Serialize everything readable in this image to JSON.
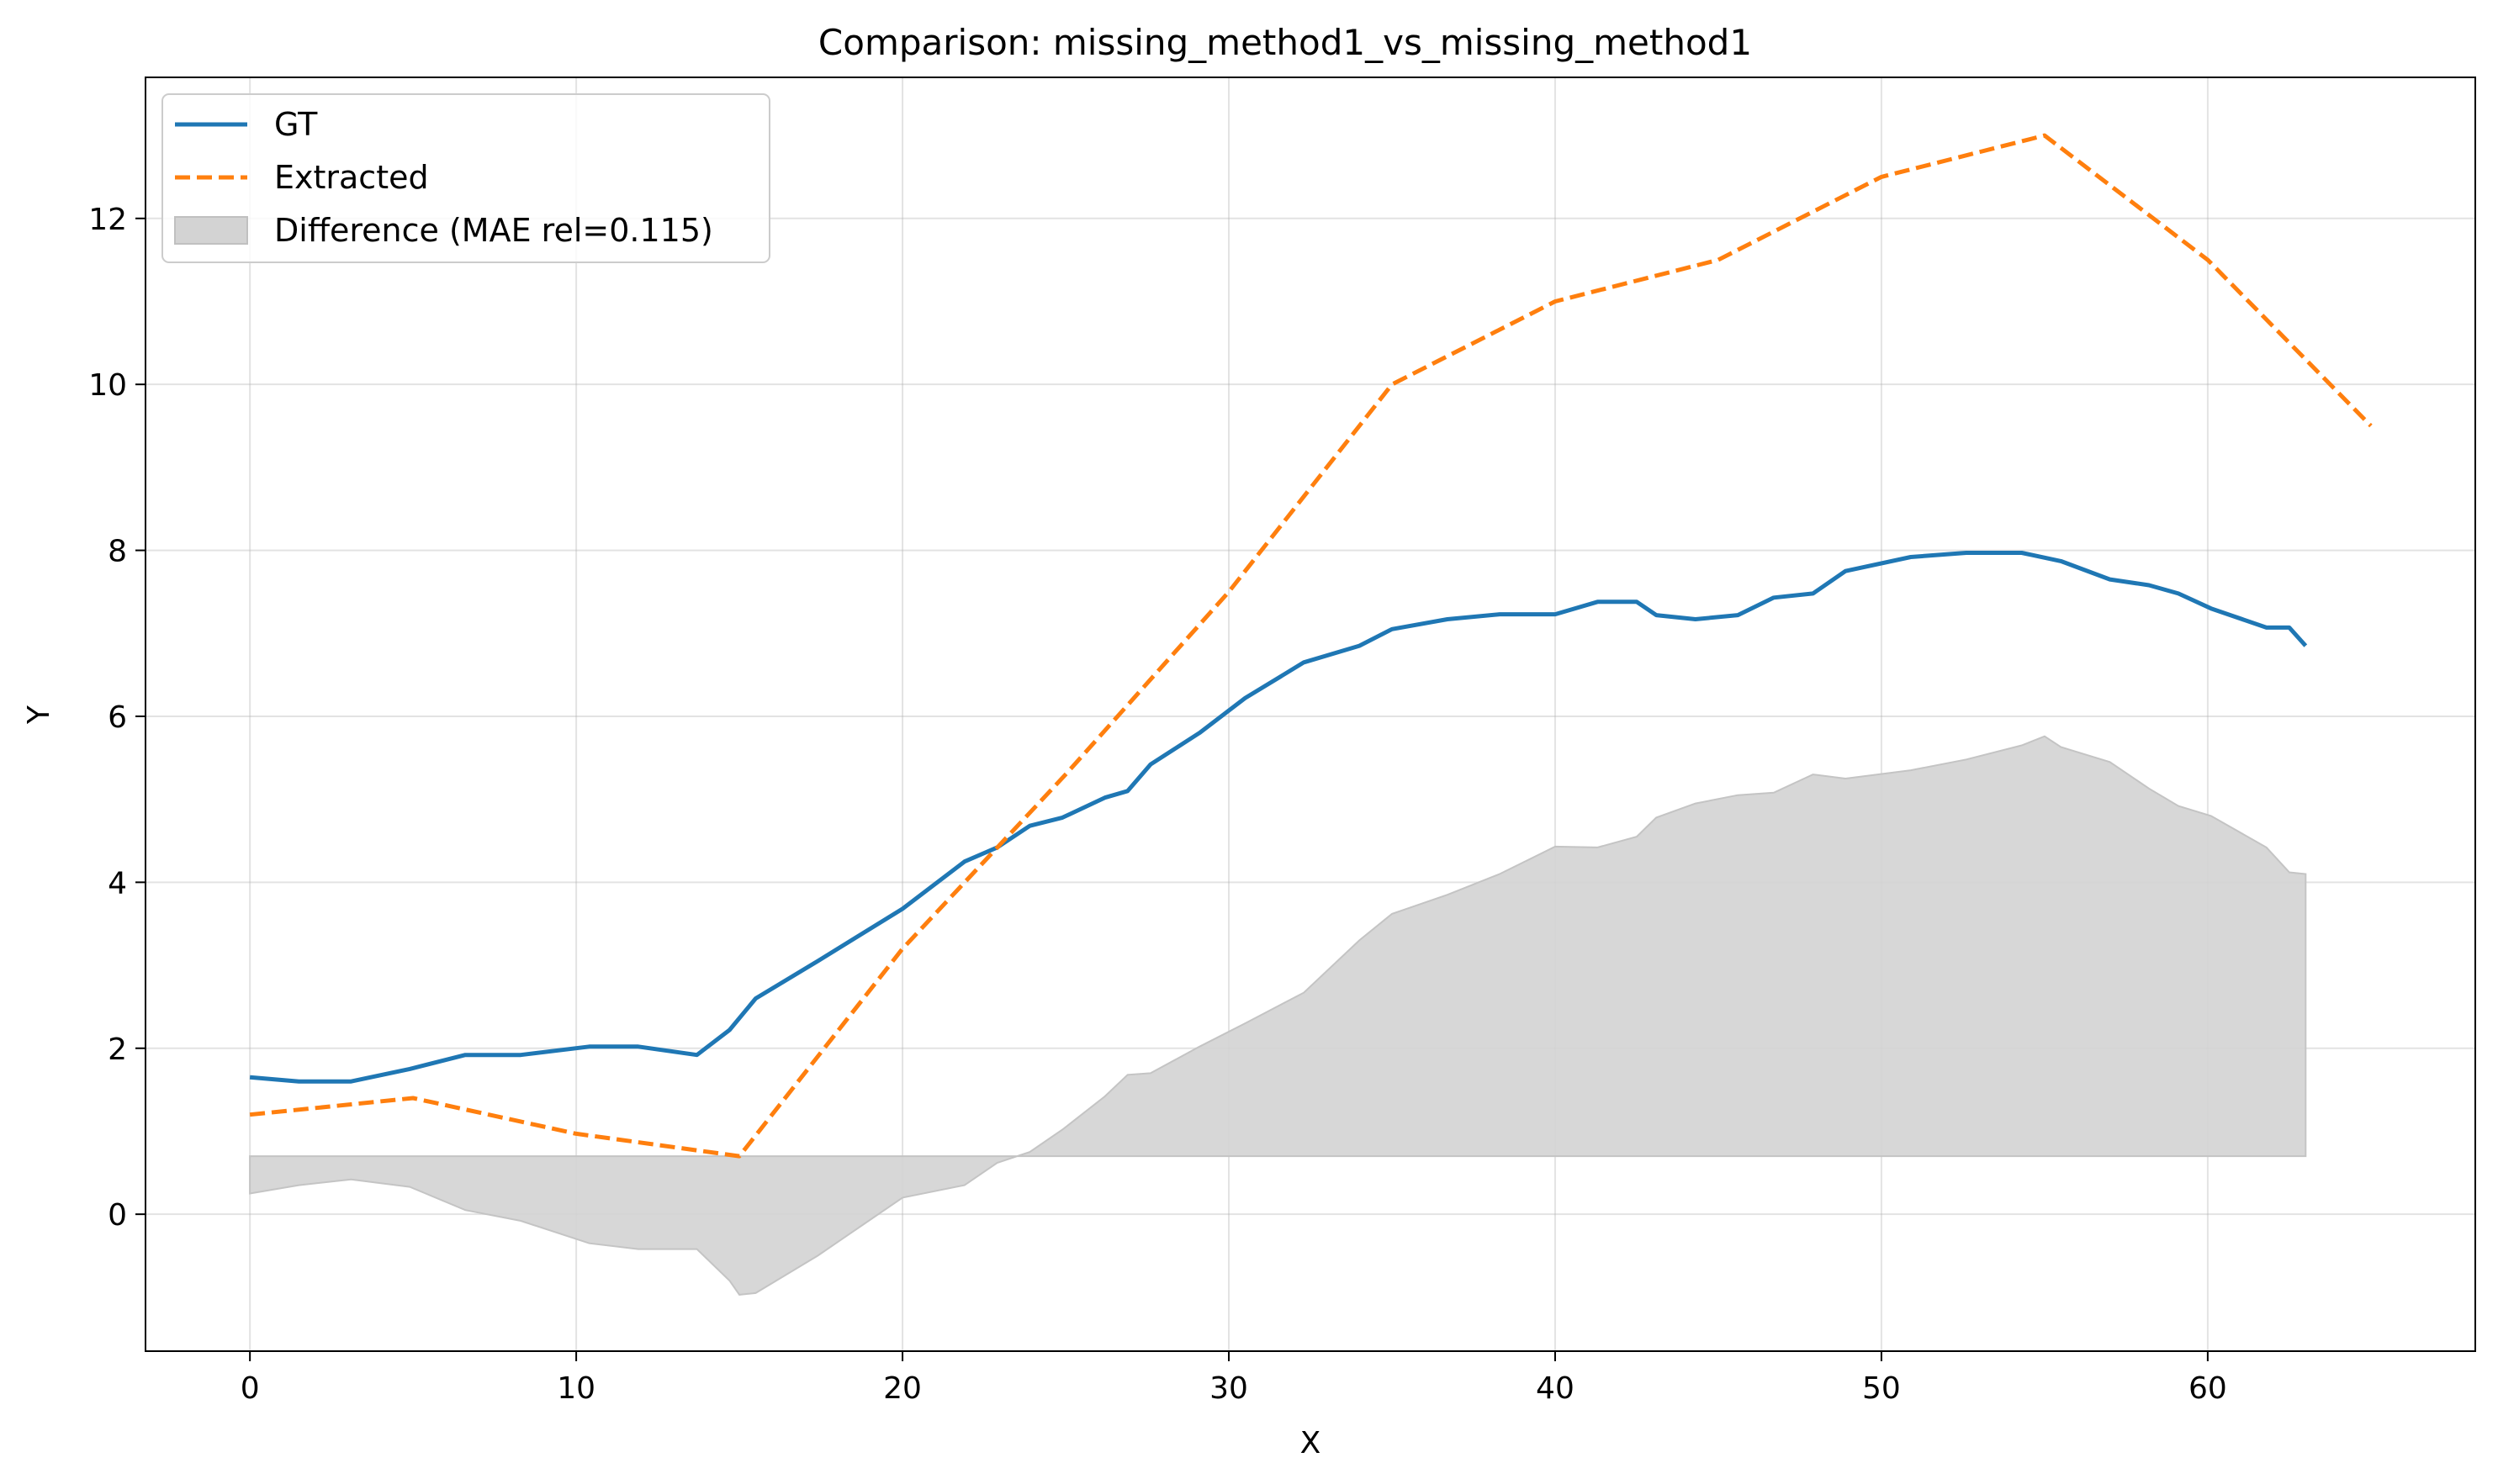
{
  "chart_data": {
    "type": "line",
    "title": "Comparison: missing_method1_vs_missing_method1",
    "xlabel": "X",
    "ylabel": "Y",
    "xlim": [
      -3.2,
      68.2
    ],
    "ylim": [
      -1.65,
      13.7
    ],
    "xticks": [
      0,
      10,
      20,
      30,
      40,
      50,
      60
    ],
    "yticks": [
      0,
      2,
      4,
      6,
      8,
      10,
      12
    ],
    "grid": true,
    "legend_position": "top-left",
    "colors": {
      "gt": "#1f77b4",
      "extracted": "#ff7f0e",
      "difference": "#d3d3d3"
    },
    "series": [
      {
        "name": "GT",
        "style": "solid",
        "points": [
          [
            0,
            1.65
          ],
          [
            1.5,
            1.6
          ],
          [
            3.1,
            1.6
          ],
          [
            4.9,
            1.75
          ],
          [
            6.6,
            1.92
          ],
          [
            8.3,
            1.92
          ],
          [
            10.4,
            2.02
          ],
          [
            11.9,
            2.02
          ],
          [
            13.7,
            1.92
          ],
          [
            14.7,
            2.22
          ],
          [
            15.5,
            2.6
          ],
          [
            17.4,
            3.05
          ],
          [
            20.0,
            3.68
          ],
          [
            21.9,
            4.25
          ],
          [
            22.9,
            4.42
          ],
          [
            23.9,
            4.68
          ],
          [
            24.9,
            4.78
          ],
          [
            26.2,
            5.02
          ],
          [
            26.9,
            5.1
          ],
          [
            27.6,
            5.42
          ],
          [
            29.1,
            5.8
          ],
          [
            30.5,
            6.22
          ],
          [
            32.3,
            6.65
          ],
          [
            34.0,
            6.85
          ],
          [
            35.0,
            7.05
          ],
          [
            36.7,
            7.17
          ],
          [
            38.3,
            7.23
          ],
          [
            40.0,
            7.23
          ],
          [
            41.3,
            7.38
          ],
          [
            42.5,
            7.38
          ],
          [
            43.1,
            7.22
          ],
          [
            44.3,
            7.17
          ],
          [
            45.6,
            7.22
          ],
          [
            46.7,
            7.43
          ],
          [
            47.9,
            7.48
          ],
          [
            48.9,
            7.75
          ],
          [
            50.9,
            7.92
          ],
          [
            52.6,
            7.97
          ],
          [
            54.3,
            7.97
          ],
          [
            55.5,
            7.87
          ],
          [
            57.0,
            7.65
          ],
          [
            58.2,
            7.58
          ],
          [
            59.1,
            7.48
          ],
          [
            60.1,
            7.3
          ],
          [
            61.8,
            7.07
          ],
          [
            62.5,
            7.07
          ],
          [
            63.0,
            6.85
          ]
        ]
      },
      {
        "name": "Extracted",
        "style": "dashed",
        "points": [
          [
            0,
            1.2
          ],
          [
            5,
            1.4
          ],
          [
            10,
            0.97
          ],
          [
            15,
            0.7
          ],
          [
            20,
            3.2
          ],
          [
            25,
            5.3
          ],
          [
            30,
            7.5
          ],
          [
            35,
            10.0
          ],
          [
            40,
            11.0
          ],
          [
            45,
            11.5
          ],
          [
            50,
            12.5
          ],
          [
            55,
            13.0
          ],
          [
            60,
            11.5
          ],
          [
            65,
            9.5
          ]
        ]
      }
    ],
    "difference": {
      "name": "Difference (MAE rel=0.115)",
      "baseline": 0.7,
      "points": [
        [
          0,
          0.25
        ],
        [
          1.5,
          0.35
        ],
        [
          3.1,
          0.42
        ],
        [
          4.9,
          0.33
        ],
        [
          6.6,
          0.05
        ],
        [
          8.3,
          -0.08
        ],
        [
          10.4,
          -0.35
        ],
        [
          11.9,
          -0.42
        ],
        [
          13.7,
          -0.42
        ],
        [
          14.7,
          -0.8
        ],
        [
          15.0,
          -0.97
        ],
        [
          15.5,
          -0.95
        ],
        [
          17.4,
          -0.5
        ],
        [
          20.0,
          0.2
        ],
        [
          21.9,
          0.35
        ],
        [
          22.9,
          0.62
        ],
        [
          23.9,
          0.75
        ],
        [
          24.9,
          1.02
        ],
        [
          26.2,
          1.42
        ],
        [
          26.9,
          1.68
        ],
        [
          27.6,
          1.7
        ],
        [
          29.1,
          2.02
        ],
        [
          30.5,
          2.3
        ],
        [
          32.3,
          2.67
        ],
        [
          34.0,
          3.3
        ],
        [
          35.0,
          3.62
        ],
        [
          36.7,
          3.85
        ],
        [
          38.3,
          4.1
        ],
        [
          40.0,
          4.43
        ],
        [
          41.3,
          4.42
        ],
        [
          42.5,
          4.55
        ],
        [
          43.1,
          4.78
        ],
        [
          44.3,
          4.95
        ],
        [
          45.6,
          5.05
        ],
        [
          46.7,
          5.08
        ],
        [
          47.9,
          5.3
        ],
        [
          48.9,
          5.25
        ],
        [
          50.9,
          5.35
        ],
        [
          52.6,
          5.48
        ],
        [
          54.3,
          5.65
        ],
        [
          55.0,
          5.76
        ],
        [
          55.5,
          5.63
        ],
        [
          57.0,
          5.45
        ],
        [
          58.2,
          5.13
        ],
        [
          59.1,
          4.92
        ],
        [
          60.1,
          4.8
        ],
        [
          61.8,
          4.42
        ],
        [
          62.5,
          4.12
        ],
        [
          63.0,
          4.1
        ]
      ]
    }
  }
}
